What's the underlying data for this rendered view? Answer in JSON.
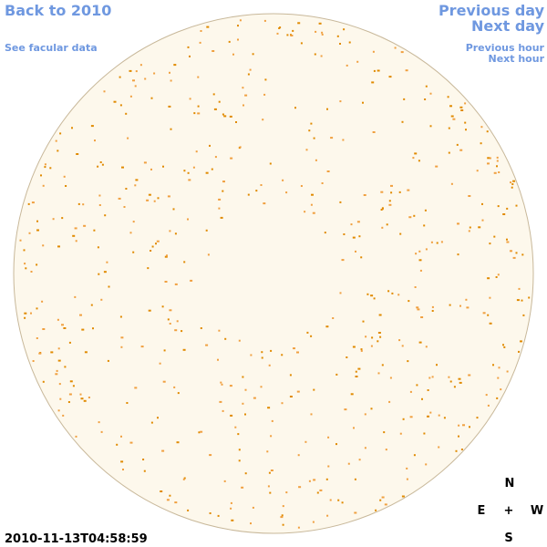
{
  "links": {
    "back": "Back to 2010",
    "facular": "See facular data",
    "previous_day": "Previous day",
    "next_day": "Next day",
    "previous_hour": "Previous hour",
    "next_hour": "Next hour"
  },
  "timestamp": "2010-11-13T04:58:59",
  "compass": {
    "north": "N",
    "east": "E",
    "center": "+",
    "west": "W",
    "south": "S"
  }
}
